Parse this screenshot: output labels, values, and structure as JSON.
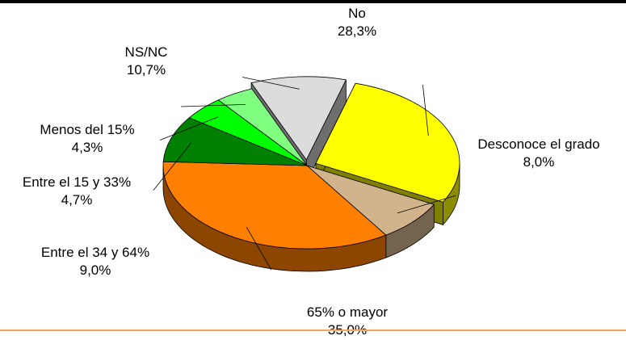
{
  "chart_data": {
    "type": "pie",
    "style": "3d-exploded",
    "legend": "none",
    "slices": [
      {
        "label": "No",
        "value": 28.3,
        "value_label": "28,3%",
        "color": "#ffff00",
        "exploded": true
      },
      {
        "label": "Desconoce el grado",
        "value": 8.0,
        "value_label": "8,0%",
        "color": "#d2b48c",
        "exploded": false
      },
      {
        "label": "65% o mayor",
        "value": 35.0,
        "value_label": "35,0%",
        "color": "#ff8000",
        "exploded": false
      },
      {
        "label": "Entre el 34 y 64%",
        "value": 9.0,
        "value_label": "9,0%",
        "color": "#008000",
        "exploded": false
      },
      {
        "label": "Entre el 15 y 33%",
        "value": 4.7,
        "value_label": "4,7%",
        "color": "#00ff00",
        "exploded": false
      },
      {
        "label": "Menos del 15%",
        "value": 4.3,
        "value_label": "4,3%",
        "color": "#80ff80",
        "exploded": false
      },
      {
        "label": "NS/NC",
        "value": 10.7,
        "value_label": "10,7%",
        "color": "#dcdcdc",
        "exploded": true
      }
    ]
  }
}
